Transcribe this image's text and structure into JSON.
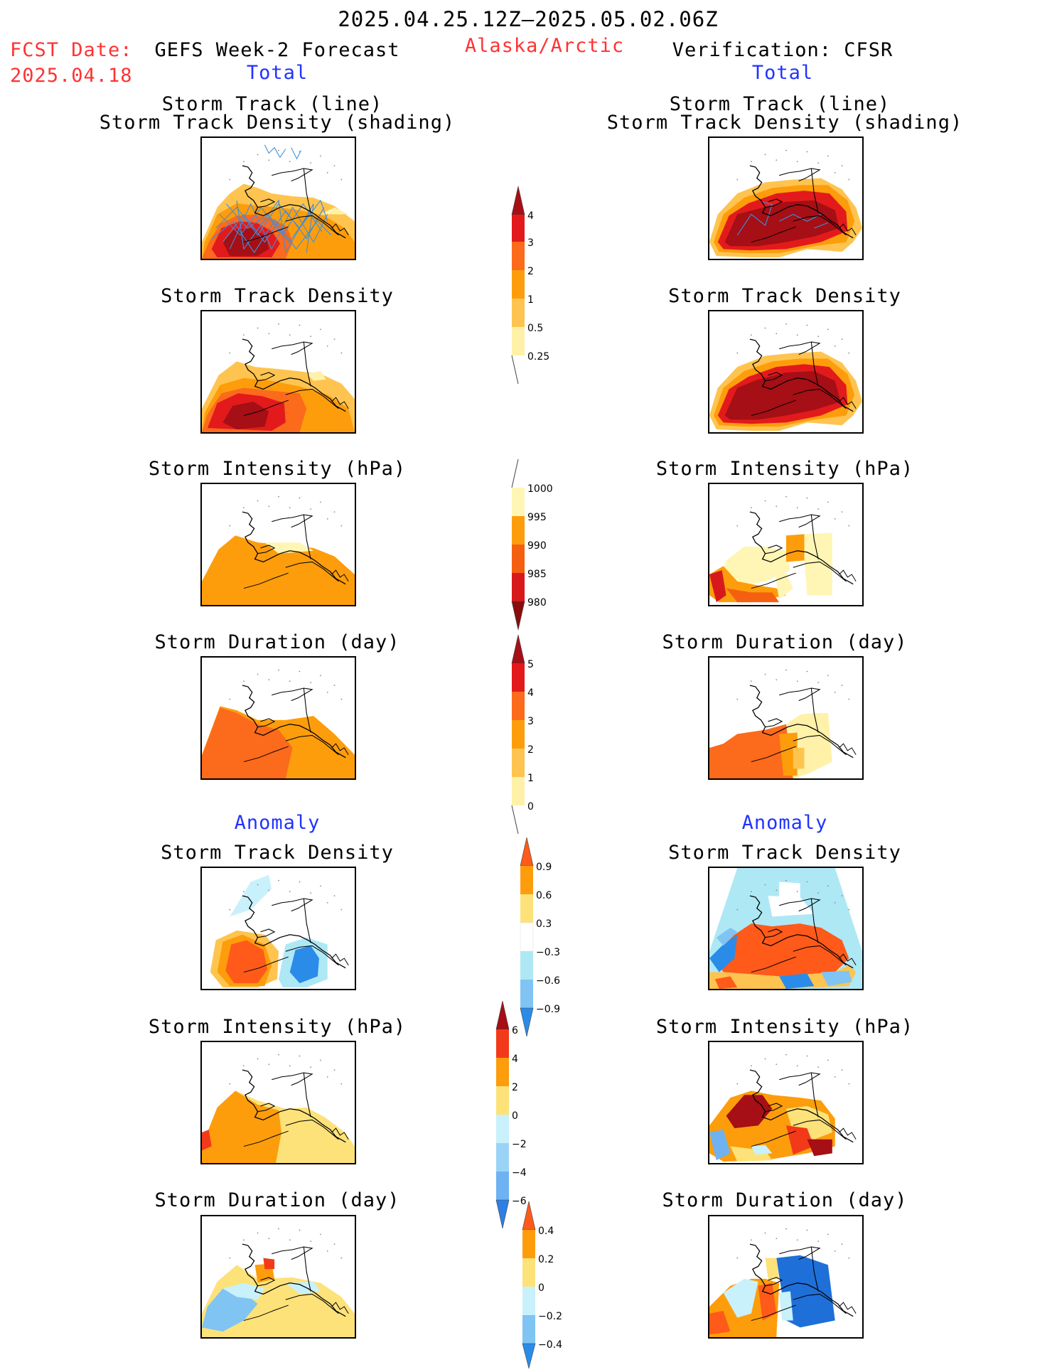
{
  "header": {
    "period": "2025.04.25.12Z–2025.05.02.06Z",
    "fcst_label": "FCST Date:",
    "fcst_date": "2025.04.18",
    "left_title": "GEFS Week-2 Forecast",
    "left_subtitle": "Total",
    "region": "Alaska/Arctic",
    "right_title": "Verification: CFSR",
    "right_subtitle": "Total"
  },
  "sections": {
    "anomaly_left": "Anomaly",
    "anomaly_right": "Anomaly"
  },
  "panels": {
    "left": [
      {
        "title1": "Storm Track (line)",
        "title2": "Storm Track Density (shading)"
      },
      {
        "title1": "Storm Track Density"
      },
      {
        "title1": "Storm Intensity (hPa)"
      },
      {
        "title1": "Storm Duration (day)"
      },
      {
        "title1": "Storm Track Density"
      },
      {
        "title1": "Storm Intensity (hPa)"
      },
      {
        "title1": "Storm Duration (day)"
      }
    ],
    "right": [
      {
        "title1": "Storm Track (line)",
        "title2": "Storm Track Density (shading)"
      },
      {
        "title1": "Storm Track Density"
      },
      {
        "title1": "Storm Intensity (hPa)"
      },
      {
        "title1": "Storm Duration (day)"
      },
      {
        "title1": "Storm Track Density"
      },
      {
        "title1": "Storm Intensity (hPa)"
      },
      {
        "title1": "Storm Duration (day)"
      }
    ]
  },
  "colorbars": [
    {
      "name": "density",
      "labels": [
        "4",
        "3",
        "2",
        "1",
        "0.5",
        "0.25"
      ],
      "colors": [
        "#a50f15",
        "#e31a1c",
        "#fc6a1c",
        "#fd9d0c",
        "#fec44f",
        "#fff1a8"
      ]
    },
    {
      "name": "intensity",
      "labels": [
        "1000",
        "995",
        "990",
        "985",
        "980"
      ],
      "colors": [
        "#fff6b5",
        "#fd9d0c",
        "#f46010",
        "#d7191c",
        "#8b0c0c"
      ]
    },
    {
      "name": "duration",
      "labels": [
        "5",
        "4",
        "3",
        "2",
        "1",
        "0"
      ],
      "colors": [
        "#a50f15",
        "#e31a1c",
        "#fc6a1c",
        "#fd9d0c",
        "#fec44f",
        "#fff1a8"
      ]
    },
    {
      "name": "density-anomaly",
      "labels": [
        "0.9",
        "0.6",
        "0.3",
        "−0.3",
        "−0.6",
        "−0.9"
      ],
      "colors": [
        "#ff5a1a",
        "#fd9d0c",
        "#fde27a",
        "#ffffff",
        "#aee8f5",
        "#7fc4f3",
        "#2a8ce8"
      ]
    },
    {
      "name": "intensity-anomaly",
      "labels": [
        "6",
        "4",
        "2",
        "0",
        "−2",
        "−4",
        "−6"
      ],
      "colors": [
        "#a50f15",
        "#f23a1a",
        "#fd9d0c",
        "#fde27a",
        "#c9f1fb",
        "#9bd3f6",
        "#6fb2f1",
        "#2d7fe6"
      ]
    },
    {
      "name": "duration-anomaly",
      "labels": [
        "0.4",
        "0.2",
        "0",
        "−0.2",
        "−0.4"
      ],
      "colors": [
        "#ff5a1a",
        "#fd9d0c",
        "#fde27a",
        "#c9f1fb",
        "#7fc4f3",
        "#2a8ce8"
      ]
    }
  ]
}
